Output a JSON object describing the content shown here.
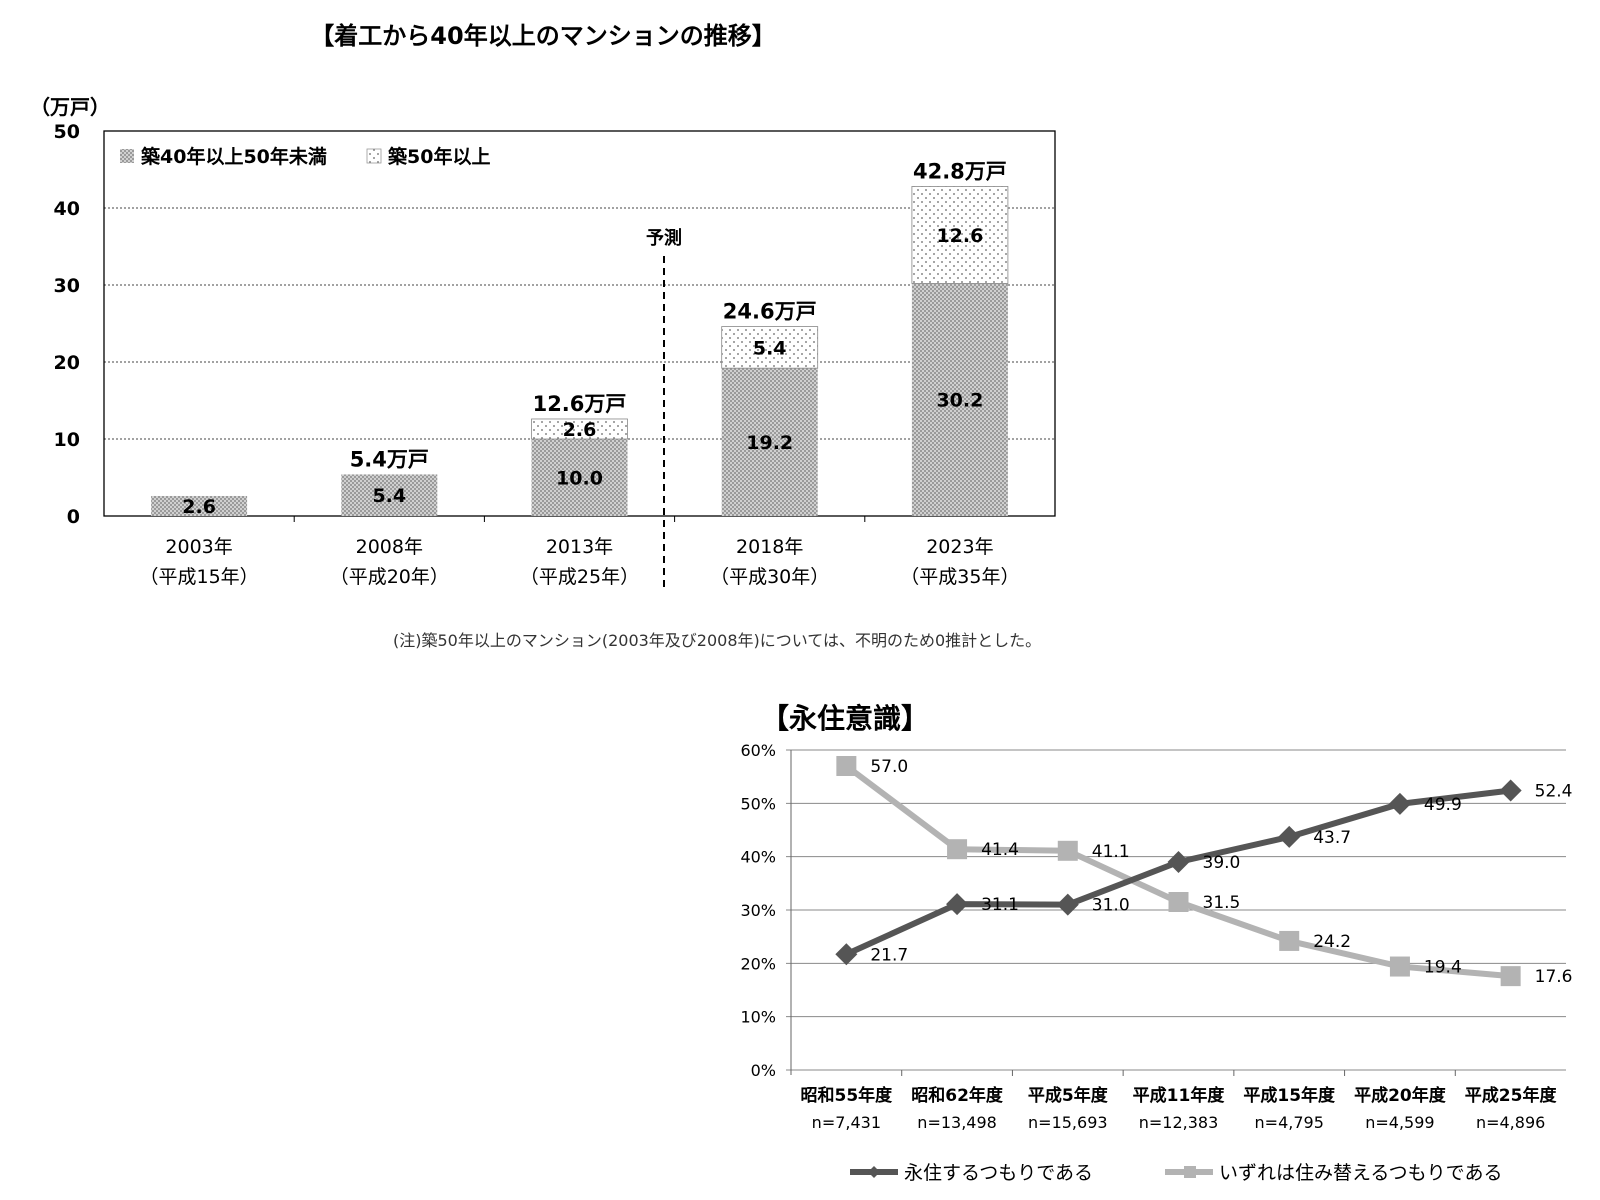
{
  "chart_data": [
    {
      "type": "bar",
      "stacked": true,
      "title": "【着工から40年以上のマンションの推移】",
      "ylabel": "（万戸）",
      "ylim": [
        0,
        50
      ],
      "yticks": [
        "0",
        "10",
        "20",
        "30",
        "40",
        "50"
      ],
      "categories": [
        {
          "year": "2003年",
          "era": "（平成15年）"
        },
        {
          "year": "2008年",
          "era": "（平成20年）"
        },
        {
          "year": "2013年",
          "era": "（平成25年）"
        },
        {
          "year": "2018年",
          "era": "（平成30年）"
        },
        {
          "year": "2023年",
          "era": "（平成35年）"
        }
      ],
      "series": [
        {
          "name": "築40年以上50年未満",
          "values": [
            2.6,
            5.4,
            10.0,
            19.2,
            30.2
          ],
          "labels": [
            "2.6",
            "5.4",
            "10.0",
            "19.2",
            "30.2"
          ]
        },
        {
          "name": "築50年以上",
          "values": [
            0,
            0,
            2.6,
            5.4,
            12.6
          ],
          "labels": [
            "",
            "",
            "2.6",
            "5.4",
            "12.6"
          ]
        }
      ],
      "totals": [
        "",
        "5.4万戸",
        "12.6万戸",
        "24.6万戸",
        "42.8万戸"
      ],
      "forecast_label": "予測",
      "legend_position": "top-left",
      "grid": true
    },
    {
      "type": "line",
      "title": "【永住意識】",
      "ylim": [
        0,
        60
      ],
      "yticks": [
        "0%",
        "10%",
        "20%",
        "30%",
        "40%",
        "50%",
        "60%"
      ],
      "categories": [
        {
          "name": "昭和55年度",
          "n": "n=7,431"
        },
        {
          "name": "昭和62年度",
          "n": "n=13,498"
        },
        {
          "name": "平成5年度",
          "n": "n=15,693"
        },
        {
          "name": "平成11年度",
          "n": "n=12,383"
        },
        {
          "name": "平成15年度",
          "n": "n=4,795"
        },
        {
          "name": "平成20年度",
          "n": "n=4,599"
        },
        {
          "name": "平成25年度",
          "n": "n=4,896"
        }
      ],
      "series": [
        {
          "name": "永住するつもりである",
          "color": "#555555",
          "marker": "diamond",
          "values": [
            21.7,
            31.1,
            31.0,
            39.0,
            43.7,
            49.9,
            52.4
          ],
          "labels": [
            "21.7",
            "31.1",
            "31.0",
            "39.0",
            "43.7",
            "49.9",
            "52.4"
          ]
        },
        {
          "name": "いずれは住み替えるつもりである",
          "color": "#b3b3b3",
          "marker": "square",
          "values": [
            57.0,
            41.4,
            41.1,
            31.5,
            24.2,
            19.4,
            17.6
          ],
          "labels": [
            "57.0",
            "41.4",
            "41.1",
            "31.5",
            "24.2",
            "19.4",
            "17.6"
          ]
        }
      ],
      "legend_position": "bottom",
      "grid": true
    }
  ],
  "note": "(注)築50年以上のマンション(2003年及び2008年)については、不明のため0推計とした。"
}
